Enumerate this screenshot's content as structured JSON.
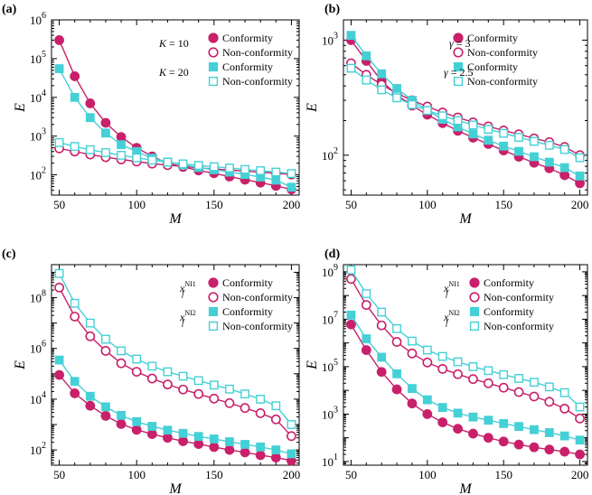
{
  "chart_data": [
    {
      "type": "line",
      "panel_label": "(a)",
      "xlabel": "M",
      "ylabel": "E",
      "yscale": "log",
      "xlim": [
        45,
        205
      ],
      "ylim": [
        30,
        1000000
      ],
      "xticks": [
        50,
        100,
        150,
        200
      ],
      "yticks": [
        {
          "value": 100,
          "base": "10",
          "exp": "2"
        },
        {
          "value": 1000,
          "base": "10",
          "exp": "3"
        },
        {
          "value": 10000,
          "base": "10",
          "exp": "4"
        },
        {
          "value": 100000,
          "base": "10",
          "exp": "5"
        },
        {
          "value": 1000000,
          "base": "10",
          "exp": "6"
        }
      ],
      "groups": [
        {
          "label_main": "K",
          "label_eq": " = 10",
          "label_sub": ""
        },
        {
          "label_main": "K",
          "label_eq": " = 20",
          "label_sub": ""
        }
      ],
      "x": [
        50,
        60,
        70,
        80,
        90,
        100,
        110,
        120,
        130,
        140,
        150,
        160,
        170,
        180,
        190,
        200
      ],
      "series": [
        {
          "name": "Conformity",
          "group": 0,
          "color": "#c8206a",
          "marker": "circle",
          "filled": true,
          "values": [
            300000,
            35000,
            7000,
            2200,
            950,
            500,
            300,
            200,
            160,
            130,
            110,
            90,
            75,
            63,
            52,
            42
          ]
        },
        {
          "name": "Non-conformity",
          "group": 0,
          "color": "#c8206a",
          "marker": "circle",
          "filled": false,
          "values": [
            480,
            400,
            335,
            285,
            250,
            220,
            195,
            178,
            165,
            152,
            142,
            133,
            125,
            117,
            110,
            102
          ]
        },
        {
          "name": "Conformity",
          "group": 1,
          "color": "#45d0d6",
          "marker": "square",
          "filled": true,
          "values": [
            55000,
            10000,
            3000,
            1200,
            600,
            400,
            270,
            215,
            180,
            155,
            135,
            118,
            102,
            88,
            73,
            48
          ]
        },
        {
          "name": "Non-conformity",
          "group": 1,
          "color": "#45d0d6",
          "marker": "square",
          "filled": false,
          "values": [
            680,
            540,
            445,
            375,
            320,
            275,
            240,
            212,
            192,
            175,
            162,
            150,
            138,
            128,
            118,
            108
          ]
        }
      ]
    },
    {
      "type": "line",
      "panel_label": "(b)",
      "xlabel": "M",
      "ylabel": "E",
      "yscale": "log",
      "xlim": [
        45,
        205
      ],
      "ylim": [
        45,
        1500
      ],
      "xticks": [
        50,
        100,
        150,
        200
      ],
      "yticks": [
        {
          "value": 100,
          "base": "10",
          "exp": "2"
        },
        {
          "value": 1000,
          "base": "10",
          "exp": "3"
        }
      ],
      "groups": [
        {
          "label_main": "γ",
          "label_eq": " = 3",
          "label_sub": ""
        },
        {
          "label_main": "γ",
          "label_eq": " = 2.5",
          "label_sub": ""
        }
      ],
      "x": [
        50,
        60,
        70,
        80,
        90,
        100,
        110,
        120,
        130,
        140,
        150,
        160,
        170,
        180,
        190,
        200
      ],
      "series": [
        {
          "name": "Conformity",
          "group": 0,
          "color": "#c8206a",
          "marker": "circle",
          "filled": true,
          "values": [
            1000,
            660,
            440,
            335,
            270,
            225,
            190,
            163,
            142,
            125,
            110,
            97,
            86,
            77,
            67,
            57
          ]
        },
        {
          "name": "Non-conformity",
          "group": 0,
          "color": "#c8206a",
          "marker": "circle",
          "filled": false,
          "values": [
            630,
            500,
            410,
            345,
            300,
            265,
            235,
            213,
            193,
            178,
            164,
            152,
            140,
            130,
            118,
            100
          ]
        },
        {
          "name": "Conformity",
          "group": 1,
          "color": "#45d0d6",
          "marker": "square",
          "filled": true,
          "values": [
            1100,
            730,
            510,
            380,
            300,
            245,
            205,
            176,
            153,
            135,
            120,
            108,
            97,
            87,
            78,
            66
          ]
        },
        {
          "name": "Non-conformity",
          "group": 1,
          "color": "#45d0d6",
          "marker": "square",
          "filled": false,
          "values": [
            570,
            450,
            370,
            315,
            275,
            245,
            220,
            200,
            183,
            168,
            155,
            143,
            132,
            122,
            112,
            95
          ]
        }
      ]
    },
    {
      "type": "line",
      "panel_label": "(c)",
      "xlabel": "M",
      "ylabel": "E",
      "yscale": "log",
      "xlim": [
        45,
        205
      ],
      "ylim": [
        25,
        2000000000
      ],
      "xticks": [
        50,
        100,
        150,
        200
      ],
      "yticks": [
        {
          "value": 100,
          "base": "10",
          "exp": "2"
        },
        {
          "value": 10000,
          "base": "10",
          "exp": "4"
        },
        {
          "value": 1000000,
          "base": "10",
          "exp": "6"
        },
        {
          "value": 100000000,
          "base": "10",
          "exp": "8"
        }
      ],
      "groups": [
        {
          "label_main": "x",
          "label_eq": "",
          "label_sub": "f",
          "label_sup": "NI1"
        },
        {
          "label_main": "x",
          "label_eq": "",
          "label_sub": "f",
          "label_sup": "NI2"
        }
      ],
      "x": [
        50,
        60,
        70,
        80,
        90,
        100,
        110,
        120,
        130,
        140,
        150,
        160,
        170,
        180,
        190,
        200
      ],
      "series": [
        {
          "name": "Conformity",
          "group": 0,
          "color": "#c8206a",
          "marker": "circle",
          "filled": true,
          "values": [
            90000,
            17000,
            5500,
            2200,
            1050,
            620,
            420,
            300,
            220,
            170,
            130,
            100,
            80,
            62,
            50,
            38
          ]
        },
        {
          "name": "Non-conformity",
          "group": 0,
          "color": "#c8206a",
          "marker": "circle",
          "filled": false,
          "values": [
            250000000,
            18000000,
            3000000,
            800000,
            260000,
            120000,
            65000,
            38000,
            24000,
            16000,
            10500,
            7000,
            4500,
            2800,
            1600,
            350
          ]
        },
        {
          "name": "Conformity",
          "group": 1,
          "color": "#45d0d6",
          "marker": "square",
          "filled": true,
          "values": [
            350000,
            50000,
            13000,
            5000,
            2300,
            1300,
            850,
            600,
            450,
            340,
            270,
            210,
            165,
            130,
            100,
            70
          ]
        },
        {
          "name": "Non-conformity",
          "group": 1,
          "color": "#45d0d6",
          "marker": "square",
          "filled": false,
          "values": [
            900000000,
            60000000,
            10000000,
            2300000,
            800000,
            380000,
            200000,
            120000,
            80000,
            54000,
            36000,
            25000,
            16000,
            10000,
            5500,
            1000
          ]
        }
      ]
    },
    {
      "type": "line",
      "panel_label": "(d)",
      "xlabel": "M",
      "ylabel": "E",
      "yscale": "log",
      "xlim": [
        45,
        205
      ],
      "ylim": [
        7,
        2000000000
      ],
      "xticks": [
        50,
        100,
        150,
        200
      ],
      "yticks": [
        {
          "value": 10,
          "base": "10",
          "exp": "1"
        },
        {
          "value": 1000,
          "base": "10",
          "exp": "3"
        },
        {
          "value": 100000,
          "base": "10",
          "exp": "5"
        },
        {
          "value": 10000000,
          "base": "10",
          "exp": "7"
        },
        {
          "value": 1000000000,
          "base": "10",
          "exp": "9"
        }
      ],
      "groups": [
        {
          "label_main": "x",
          "label_eq": "",
          "label_sub": "f",
          "label_sup": "NI1"
        },
        {
          "label_main": "x",
          "label_eq": "",
          "label_sub": "f",
          "label_sup": "NI2"
        }
      ],
      "x": [
        50,
        60,
        70,
        80,
        90,
        100,
        110,
        120,
        130,
        140,
        150,
        160,
        170,
        180,
        190,
        200
      ],
      "series": [
        {
          "name": "Conformity",
          "group": 0,
          "color": "#c8206a",
          "marker": "circle",
          "filled": true,
          "values": [
            6000000,
            500000,
            60000,
            11000,
            2800,
            1000,
            450,
            240,
            150,
            100,
            70,
            52,
            40,
            32,
            26,
            20
          ]
        },
        {
          "name": "Non-conformity",
          "group": 0,
          "color": "#c8206a",
          "marker": "circle",
          "filled": false,
          "values": [
            500000000,
            40000000,
            5500000,
            1100000,
            360000,
            150000,
            80000,
            48000,
            30000,
            20000,
            13000,
            8500,
            5500,
            3300,
            1700,
            650
          ]
        },
        {
          "name": "Conformity",
          "group": 1,
          "color": "#45d0d6",
          "marker": "square",
          "filled": true,
          "values": [
            15000000,
            1500000,
            250000,
            50000,
            12000,
            4000,
            1900,
            1100,
            750,
            550,
            400,
            300,
            220,
            165,
            120,
            80
          ]
        },
        {
          "name": "Non-conformity",
          "group": 1,
          "color": "#45d0d6",
          "marker": "square",
          "filled": false,
          "values": [
            1200000000,
            120000000,
            20000000,
            4000000,
            1200000,
            500000,
            270000,
            160000,
            100000,
            68000,
            46000,
            32000,
            22000,
            14000,
            8000,
            2000
          ]
        }
      ]
    }
  ]
}
